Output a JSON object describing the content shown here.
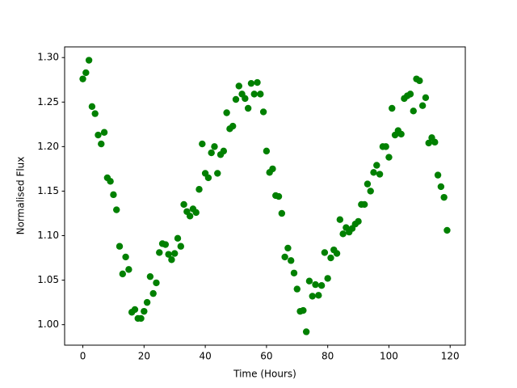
{
  "chart_data": {
    "type": "scatter",
    "x_label": "Time (Hours)",
    "y_label": "Normalised Flux",
    "series": [
      {
        "color": "#008000",
        "x": [
          0,
          1,
          2,
          3,
          4,
          5,
          6,
          7,
          8,
          9,
          10,
          11,
          12,
          13,
          14,
          15,
          16,
          17,
          18,
          19,
          20,
          21,
          22,
          23,
          24,
          25,
          26,
          27,
          28,
          29,
          30,
          31,
          32,
          33,
          34,
          35,
          36,
          37,
          38,
          39,
          40,
          41,
          42,
          43,
          44,
          45,
          46,
          47,
          48,
          49,
          50,
          51,
          52,
          53,
          54,
          55,
          56,
          57,
          58,
          59,
          60,
          61,
          62,
          63,
          64,
          65,
          66,
          67,
          68,
          69,
          70,
          71,
          72,
          73,
          74,
          75,
          76,
          77,
          78,
          79,
          80,
          81,
          82,
          83,
          84,
          85,
          86,
          87,
          88,
          89,
          90,
          91,
          92,
          93,
          94,
          95,
          96,
          97,
          98,
          99,
          100,
          101,
          102,
          103,
          104,
          105,
          106,
          107,
          108,
          109,
          110,
          111,
          112,
          113,
          114,
          115,
          116,
          117,
          118,
          119
        ],
        "values": [
          1.276,
          1.283,
          1.297,
          1.245,
          1.237,
          1.213,
          1.203,
          1.216,
          1.165,
          1.161,
          1.146,
          1.129,
          1.088,
          1.057,
          1.076,
          1.062,
          1.014,
          1.017,
          1.007,
          1.007,
          1.015,
          1.025,
          1.054,
          1.035,
          1.047,
          1.081,
          1.091,
          1.09,
          1.079,
          1.073,
          1.08,
          1.097,
          1.088,
          1.135,
          1.127,
          1.122,
          1.13,
          1.126,
          1.152,
          1.203,
          1.17,
          1.165,
          1.193,
          1.2,
          1.17,
          1.191,
          1.195,
          1.238,
          1.22,
          1.223,
          1.253,
          1.268,
          1.259,
          1.254,
          1.243,
          1.271,
          1.259,
          1.272,
          1.259,
          1.239,
          1.195,
          1.171,
          1.175,
          1.145,
          1.144,
          1.125,
          1.076,
          1.086,
          1.072,
          1.058,
          1.04,
          1.015,
          1.016,
          0.992,
          1.049,
          1.032,
          1.045,
          1.033,
          1.044,
          1.081,
          1.052,
          1.075,
          1.084,
          1.08,
          1.118,
          1.102,
          1.109,
          1.104,
          1.108,
          1.113,
          1.116,
          1.135,
          1.135,
          1.158,
          1.15,
          1.171,
          1.179,
          1.169,
          1.2,
          1.2,
          1.188,
          1.243,
          1.213,
          1.218,
          1.214,
          1.254,
          1.257,
          1.259,
          1.24,
          1.276,
          1.274,
          1.246,
          1.255,
          1.204,
          1.21,
          1.205,
          1.168,
          1.155,
          1.143,
          1.106
        ]
      }
    ],
    "xlim": [
      -5.95,
      124.95
    ],
    "ylim": [
      0.977,
      1.312
    ],
    "xticks": [
      0,
      20,
      40,
      60,
      80,
      100,
      120
    ],
    "yticks": [
      {
        "value": 1.0,
        "label": "1.00"
      },
      1.05,
      {
        "value": 1.1,
        "label": "1.10"
      },
      1.15,
      {
        "value": 1.2,
        "label": "1.20"
      },
      1.25,
      {
        "value": 1.3,
        "label": "1.30"
      }
    ],
    "grid": false
  }
}
